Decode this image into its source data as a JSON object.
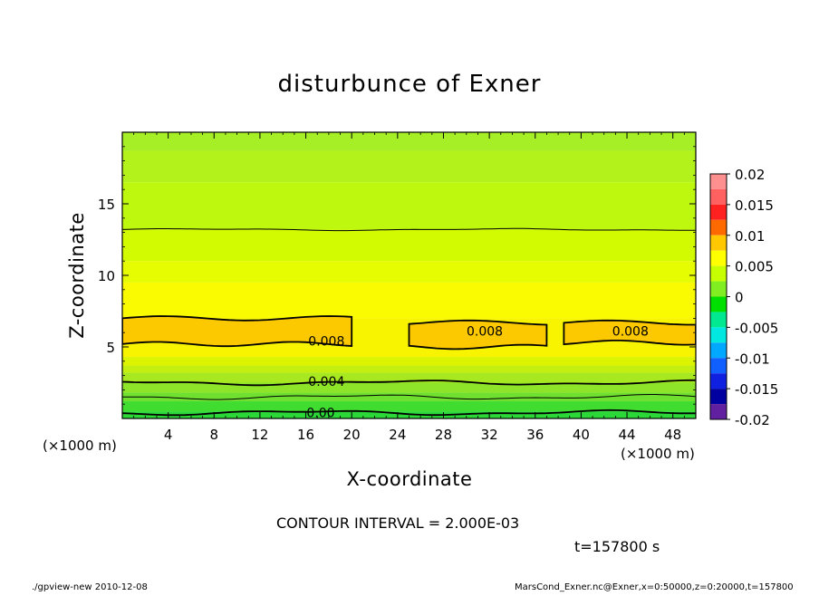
{
  "chart_data": {
    "type": "heatmap",
    "title": "disturbunce of Exner",
    "xlabel": "X-coordinate",
    "ylabel": "Z-coordinate",
    "x_unit": "(×1000 m)",
    "z_unit": "(×1000 m)",
    "xlim": [
      0,
      50
    ],
    "ylim": [
      0,
      20
    ],
    "x_ticks": [
      "4",
      "8",
      "12",
      "16",
      "20",
      "24",
      "28",
      "32",
      "36",
      "40",
      "44",
      "48"
    ],
    "y_ticks": [
      "5",
      "10",
      "15"
    ],
    "colorbar": {
      "ticks": [
        "0.02",
        "0.015",
        "0.01",
        "0.005",
        "0",
        "-0.005",
        "-0.01",
        "-0.015",
        "-0.02"
      ],
      "range": [
        -0.02,
        0.02
      ],
      "levels": [
        {
          "from": 0.0175,
          "to": 0.02,
          "color": "#ff9090"
        },
        {
          "from": 0.015,
          "to": 0.0175,
          "color": "#ff6060"
        },
        {
          "from": 0.0125,
          "to": 0.015,
          "color": "#ff2020"
        },
        {
          "from": 0.01,
          "to": 0.0125,
          "color": "#ff6a00"
        },
        {
          "from": 0.0075,
          "to": 0.01,
          "color": "#ffc800"
        },
        {
          "from": 0.005,
          "to": 0.0075,
          "color": "#ffff00"
        },
        {
          "from": 0.0025,
          "to": 0.005,
          "color": "#c8ff00"
        },
        {
          "from": 0.0,
          "to": 0.0025,
          "color": "#80ee20"
        },
        {
          "from": -0.0025,
          "to": 0.0,
          "color": "#00e000"
        },
        {
          "from": -0.005,
          "to": -0.0025,
          "color": "#00e890"
        },
        {
          "from": -0.0075,
          "to": -0.005,
          "color": "#00e8e0"
        },
        {
          "from": -0.01,
          "to": -0.0075,
          "color": "#00a8ff"
        },
        {
          "from": -0.0125,
          "to": -0.01,
          "color": "#1060ff"
        },
        {
          "from": -0.015,
          "to": -0.0125,
          "color": "#1020e0"
        },
        {
          "from": -0.0175,
          "to": -0.015,
          "color": "#0000a0"
        },
        {
          "from": -0.02,
          "to": -0.0175,
          "color": "#6020a0"
        }
      ]
    },
    "field_bands": [
      {
        "z_from": 18.7,
        "z_to": 20.0,
        "value_range": "0.002-0.004",
        "color": "#a6ee26"
      },
      {
        "z_from": 16.5,
        "z_to": 18.7,
        "value_range": "0.003-0.005",
        "color": "#b4f21c"
      },
      {
        "z_from": 13.2,
        "z_to": 16.5,
        "value_range": "0.004-0.005",
        "color": "#bef80e"
      },
      {
        "z_from": 11.0,
        "z_to": 13.2,
        "value_range": "0.005-0.006",
        "color": "#d2fa00"
      },
      {
        "z_from": 9.5,
        "z_to": 11.0,
        "value_range": "0.005-0.006",
        "color": "#e6fc00"
      },
      {
        "z_from": 7.0,
        "z_to": 9.5,
        "value_range": "0.006-0.008",
        "color": "#fafa00"
      },
      {
        "z_from": 4.3,
        "z_to": 7.0,
        "value_range": "0.006-0.008",
        "color": "#f8f400"
      },
      {
        "z_from": 3.7,
        "z_to": 4.3,
        "value_range": "0.004-0.006",
        "color": "#dcf400"
      },
      {
        "z_from": 3.2,
        "z_to": 3.7,
        "value_range": "0.004-0.005",
        "color": "#c4ee10"
      },
      {
        "z_from": 2.5,
        "z_to": 3.2,
        "value_range": "0.003-0.004",
        "color": "#a8e820"
      },
      {
        "z_from": 1.8,
        "z_to": 2.5,
        "value_range": "0.002-0.003",
        "color": "#8ee428"
      },
      {
        "z_from": 1.2,
        "z_to": 1.8,
        "value_range": "0.001-0.002",
        "color": "#70e030"
      },
      {
        "z_from": 0.5,
        "z_to": 1.2,
        "value_range": "0.000-0.001",
        "color": "#40dc30"
      },
      {
        "z_from": 0.0,
        "z_to": 0.5,
        "value_range": "-0.001-0.000",
        "color": "#2cd838"
      }
    ],
    "contours": [
      {
        "level": 0.006,
        "z_mean": 13.2
      },
      {
        "level": 0.008,
        "regions": [
          {
            "x": [
              0,
              20
            ],
            "z": [
              5.2,
              7.0
            ]
          },
          {
            "x": [
              25,
              37
            ],
            "z": [
              5.0,
              6.7
            ]
          },
          {
            "x": [
              38.5,
              50
            ],
            "z": [
              5.3,
              6.7
            ]
          }
        ]
      },
      {
        "level": 0.004,
        "z_mean": 2.5
      },
      {
        "level": 0.002,
        "z_mean": 1.5
      },
      {
        "level": 0.0,
        "z_mean": 0.4
      }
    ],
    "contour_labels": [
      {
        "text": "0.008",
        "x": 17.8,
        "z": 5.4
      },
      {
        "text": "0.008",
        "x": 31.6,
        "z": 6.1
      },
      {
        "text": "0.008",
        "x": 44.3,
        "z": 6.1
      },
      {
        "text": "0.004",
        "x": 17.8,
        "z": 2.6
      },
      {
        "text": "0.00",
        "x": 17.3,
        "z": 0.4
      }
    ]
  },
  "annotations": {
    "contour_interval": "CONTOUR INTERVAL = 2.000E-03",
    "time": "t=157800 s",
    "footer_left": "./gpview-new  2010-12-08",
    "footer_right": "MarsCond_Exner.nc@Exner,x=0:50000,z=0:20000,t=157800"
  }
}
